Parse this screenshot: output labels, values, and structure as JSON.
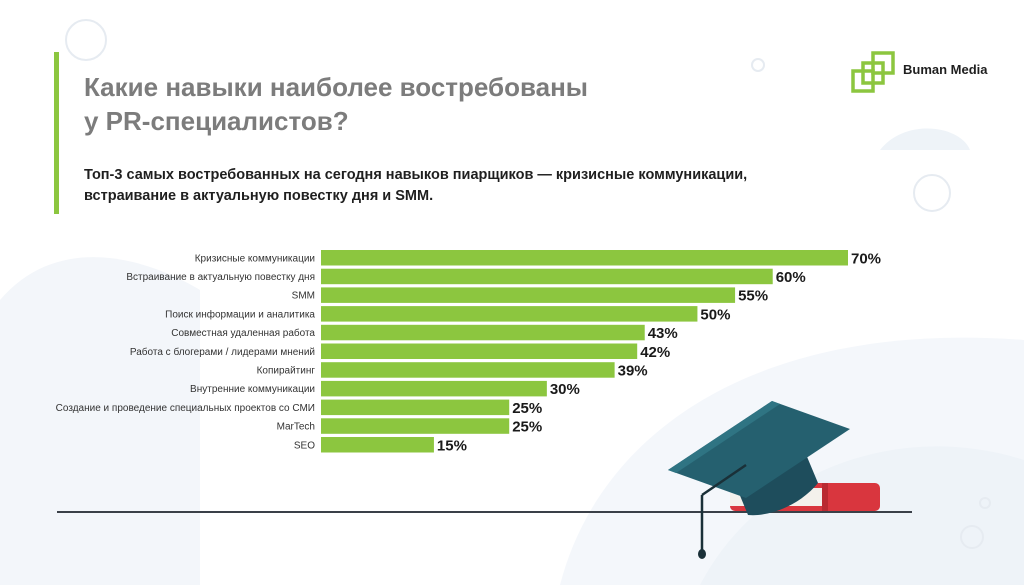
{
  "header": {
    "title_line1": "Какие навыки наиболее востребованы",
    "title_line2": "у PR-специалистов?",
    "subtitle_line1": "Топ-3 самых востребованных на сегодня навыков пиарщиков — кризисные коммуникации,",
    "subtitle_line2": "встраивание в актуальную повестку дня и SMM."
  },
  "brand": {
    "name": "Buman Media",
    "accent_color": "#8cc63f",
    "logo_icon": "nested-squares-logo-icon"
  },
  "colors": {
    "bar": "#8cc63f",
    "title": "#7c7c7c",
    "text": "#1f1f1f",
    "cap": "#1e4d5c",
    "book": "#d9363e"
  },
  "decor": {
    "illustration": "graduation-cap-on-book-icon"
  },
  "chart_data": {
    "type": "bar",
    "orientation": "horizontal",
    "categories": [
      "Кризисные коммуникации",
      "Встраивание в актуальную повестку дня",
      "SMM",
      "Поиск информации и аналитика",
      "Совместная удаленная работа",
      "Работа с блогерами / лидерами мнений",
      "Копирайтинг",
      "Внутренние коммуникации",
      "Создание и проведение специальных проектов со СМИ",
      "MarTech",
      "SEO"
    ],
    "values": [
      70,
      60,
      55,
      50,
      43,
      42,
      39,
      30,
      25,
      25,
      15
    ],
    "value_labels": [
      "70%",
      "60%",
      "55%",
      "50%",
      "43%",
      "42%",
      "39%",
      "30%",
      "25%",
      "25%",
      "15%"
    ],
    "xlim": [
      0,
      70
    ],
    "grid": false,
    "legend": "none"
  }
}
